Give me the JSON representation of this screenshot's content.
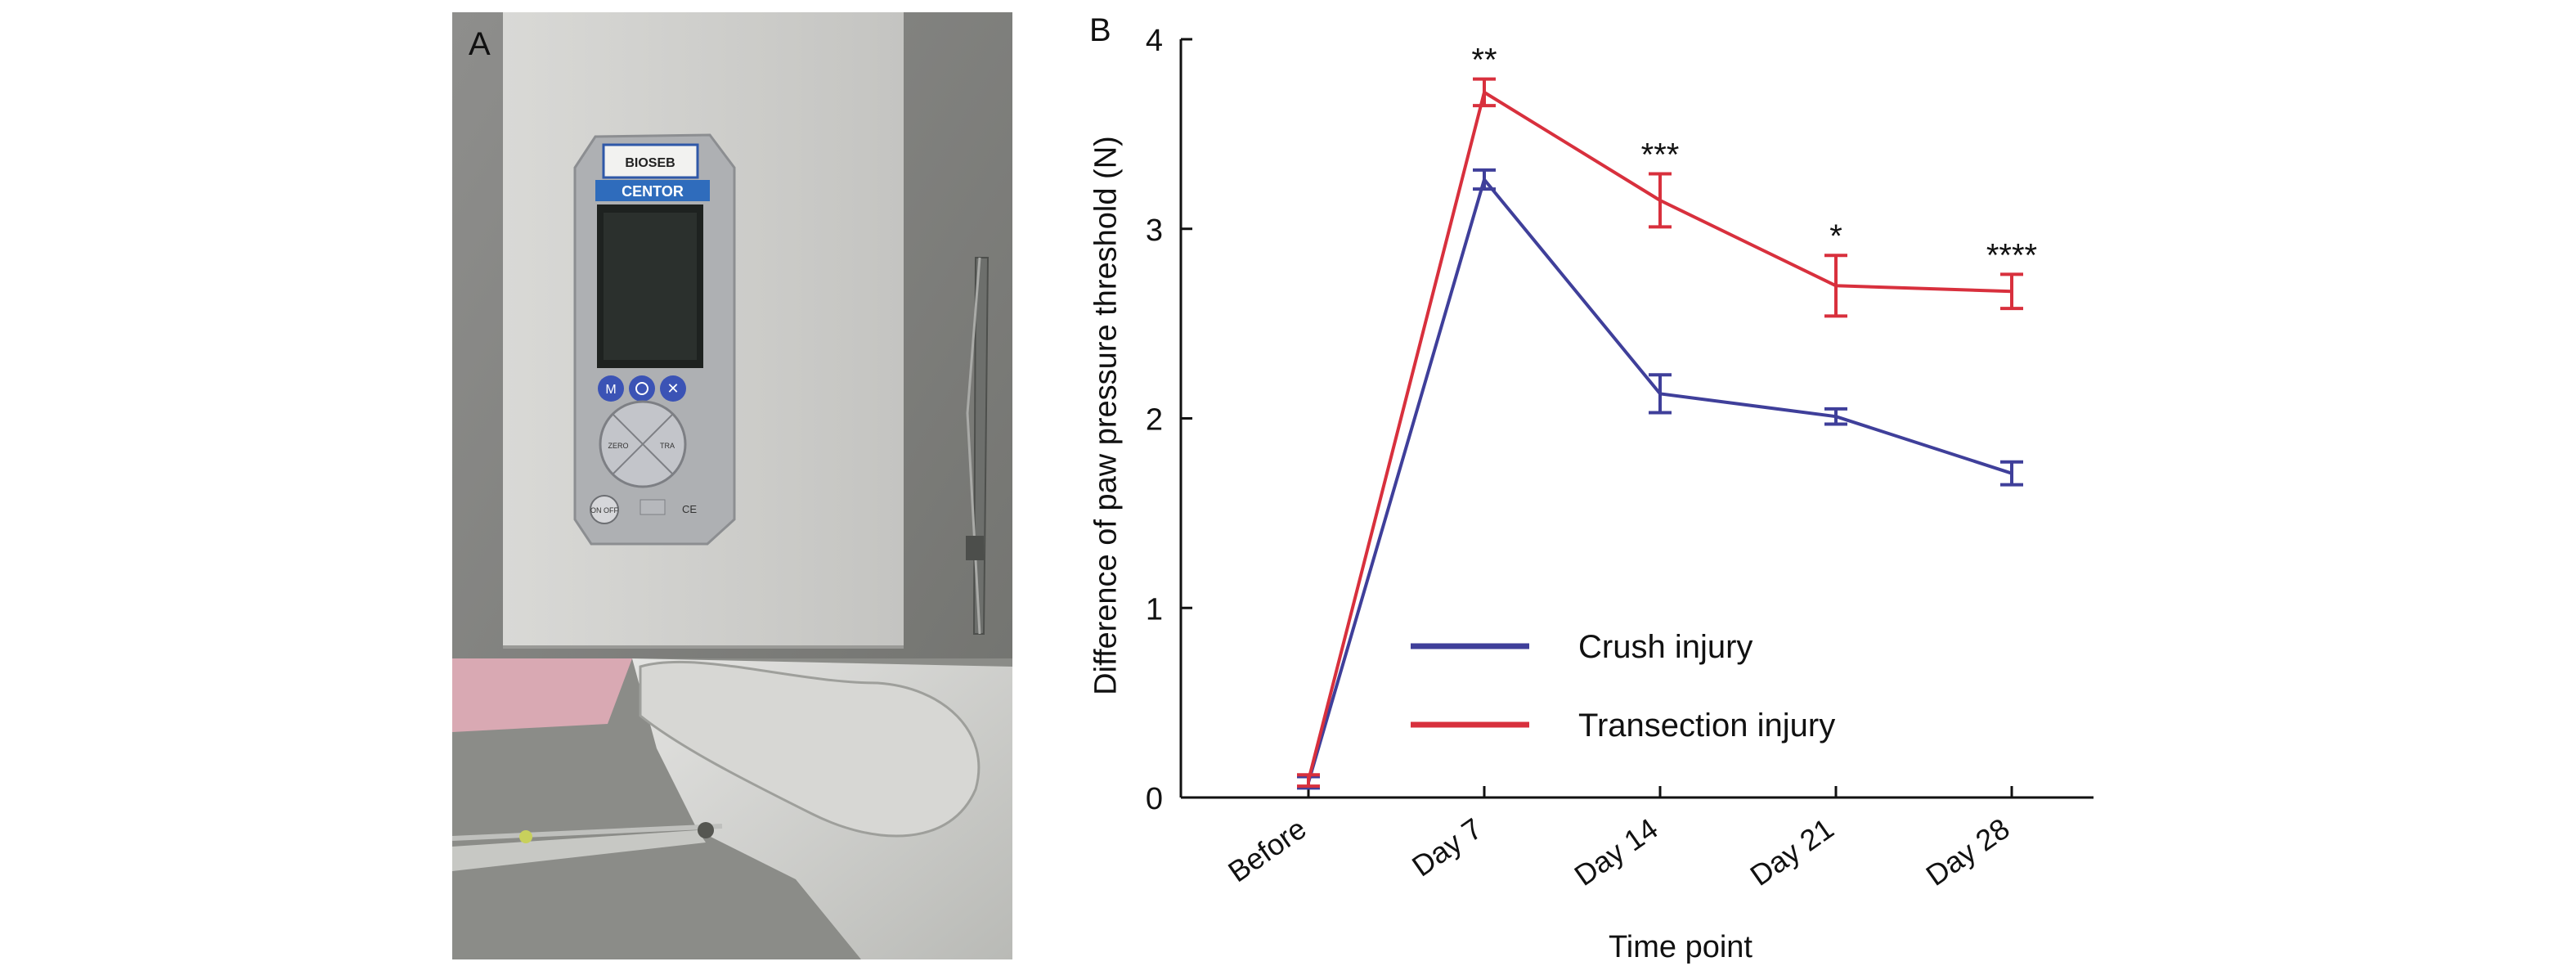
{
  "panel_a": {
    "label": "A",
    "device": {
      "brand_label": "BIOSEB",
      "model_label": "CENTOR",
      "buttons": [
        "M",
        "ON OFF"
      ],
      "key_labels": [
        "ZERO",
        "TRA"
      ]
    }
  },
  "panel_b": {
    "label": "B"
  },
  "chart_data": {
    "type": "line",
    "title": "",
    "xlabel": "Time point",
    "ylabel": "Difference of paw pressure threshold (N)",
    "categories": [
      "Before",
      "Day 7",
      "Day 14",
      "Day 21",
      "Day 28"
    ],
    "ylim": [
      0,
      4
    ],
    "yticks": [
      "0",
      "1",
      "2",
      "3",
      "4"
    ],
    "grid": false,
    "legend_position": "lower-center",
    "series": [
      {
        "name": "Crush injury",
        "color": "#3f3f9a",
        "values": [
          0.08,
          3.26,
          2.13,
          2.01,
          1.71
        ],
        "errors": [
          0.03,
          0.05,
          0.1,
          0.04,
          0.06
        ]
      },
      {
        "name": "Transection injury",
        "color": "#d8303d",
        "values": [
          0.09,
          3.72,
          3.15,
          2.7,
          2.67
        ],
        "errors": [
          0.03,
          0.07,
          0.14,
          0.16,
          0.09
        ]
      }
    ],
    "annotations": [
      "",
      "**",
      "***",
      "*",
      "****"
    ]
  }
}
